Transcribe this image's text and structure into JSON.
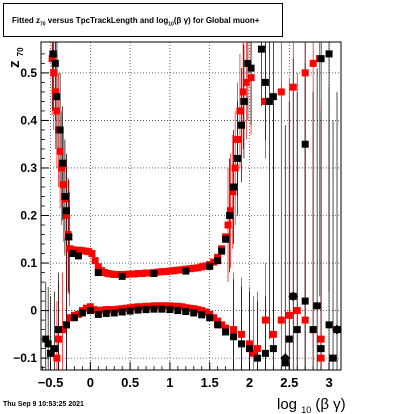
{
  "chart_data": {
    "type": "scatter",
    "title": "Fitted  z versus TpcTrackLength and log10(β γ) for Global muon+",
    "title_parts": {
      "prefix": "Fitted  z",
      "prefix_sub": "70",
      "middle": "  versus TpcTrackLength and log",
      "middle_sub": "10",
      "suffix": "(β  γ) for Global muon+"
    },
    "xlabel": "log10(β γ)",
    "xlabel_parts": {
      "main": "log",
      "sub": "10",
      "rest": "(β γ)"
    },
    "ylabel": "z70",
    "ylabel_parts": {
      "main": "z",
      "sub": "70"
    },
    "xlim": [
      -0.62,
      3.15
    ],
    "ylim": [
      -0.125,
      0.565
    ],
    "x_ticks": [
      -0.5,
      0,
      0.5,
      1,
      1.5,
      2,
      2.5,
      3
    ],
    "x_tick_labels": [
      "−0.5",
      "0",
      "0.5",
      "1",
      "1.5",
      "2",
      "2.5",
      "3"
    ],
    "y_ticks": [
      -0.1,
      0,
      0.1,
      0.2,
      0.3,
      0.4,
      0.5
    ],
    "y_tick_labels": [
      "−0.1",
      "0",
      "0.1",
      "0.2",
      "0.3",
      "0.4",
      "0.5"
    ],
    "grid": true,
    "series": [
      {
        "color": "#ff0000",
        "marker": "square",
        "points": [
          [
            -0.48,
            0.53
          ],
          [
            -0.46,
            0.5
          ],
          [
            -0.44,
            0.46
          ],
          [
            -0.42,
            0.42
          ],
          [
            -0.4,
            0.38
          ],
          [
            -0.38,
            0.335
          ],
          [
            -0.36,
            0.3
          ],
          [
            -0.34,
            0.265
          ],
          [
            -0.32,
            0.235
          ],
          [
            -0.3,
            0.2
          ],
          [
            -0.28,
            0.16
          ],
          [
            -0.26,
            0.13
          ],
          [
            -0.22,
            0.128
          ],
          [
            -0.18,
            0.127
          ],
          [
            -0.14,
            0.127
          ],
          [
            -0.1,
            0.126
          ],
          [
            -0.06,
            0.125
          ],
          [
            -0.02,
            0.124
          ],
          [
            0.02,
            0.12
          ],
          [
            0.06,
            0.105
          ],
          [
            0.1,
            0.092
          ],
          [
            0.14,
            0.084
          ],
          [
            0.18,
            0.08
          ],
          [
            0.22,
            0.078
          ],
          [
            0.26,
            0.077
          ],
          [
            0.3,
            0.076
          ],
          [
            0.35,
            0.076
          ],
          [
            0.4,
            0.076
          ],
          [
            0.45,
            0.076
          ],
          [
            0.5,
            0.077
          ],
          [
            0.55,
            0.077
          ],
          [
            0.6,
            0.078
          ],
          [
            0.65,
            0.078
          ],
          [
            0.7,
            0.079
          ],
          [
            0.75,
            0.079
          ],
          [
            0.8,
            0.08
          ],
          [
            0.85,
            0.081
          ],
          [
            0.9,
            0.082
          ],
          [
            0.95,
            0.082
          ],
          [
            1.0,
            0.083
          ],
          [
            1.05,
            0.084
          ],
          [
            1.1,
            0.085
          ],
          [
            1.15,
            0.086
          ],
          [
            1.2,
            0.087
          ],
          [
            1.25,
            0.088
          ],
          [
            1.3,
            0.089
          ],
          [
            1.35,
            0.09
          ],
          [
            1.4,
            0.092
          ],
          [
            1.45,
            0.094
          ],
          [
            1.5,
            0.097
          ],
          [
            1.55,
            0.102
          ],
          [
            1.6,
            0.112
          ],
          [
            1.65,
            0.13
          ],
          [
            1.7,
            0.155
          ],
          [
            1.73,
            0.18
          ],
          [
            1.76,
            0.21
          ],
          [
            1.79,
            0.25
          ],
          [
            1.82,
            0.3
          ],
          [
            1.85,
            0.36
          ],
          [
            1.88,
            0.42
          ],
          [
            1.92,
            0.46
          ],
          [
            1.96,
            0.48
          ],
          [
            2.02,
            0.49
          ],
          [
            2.2,
            0.44
          ],
          [
            2.4,
            0.46
          ],
          [
            2.55,
            0.47
          ],
          [
            2.7,
            0.5
          ],
          [
            2.8,
            0.52
          ],
          [
            2.88,
            0.53
          ],
          [
            -0.4,
            -0.06
          ],
          [
            -0.35,
            -0.04
          ],
          [
            -0.3,
            -0.03
          ],
          [
            -0.25,
            -0.015
          ],
          [
            -0.2,
            -0.01
          ],
          [
            -0.15,
            -0.008
          ],
          [
            -0.1,
            0.0
          ],
          [
            -0.05,
            0.005
          ],
          [
            0.0,
            0.008
          ],
          [
            0.05,
            0.002
          ],
          [
            0.1,
            0.0
          ],
          [
            0.15,
            0.001
          ],
          [
            0.2,
            0.002
          ],
          [
            0.25,
            0.002
          ],
          [
            0.3,
            0.002
          ],
          [
            0.35,
            0.003
          ],
          [
            0.4,
            0.004
          ],
          [
            0.45,
            0.005
          ],
          [
            0.5,
            0.006
          ],
          [
            0.55,
            0.007
          ],
          [
            0.6,
            0.008
          ],
          [
            0.65,
            0.008
          ],
          [
            0.7,
            0.009
          ],
          [
            0.75,
            0.009
          ],
          [
            0.8,
            0.01
          ],
          [
            0.85,
            0.01
          ],
          [
            0.9,
            0.01
          ],
          [
            0.95,
            0.01
          ],
          [
            1.0,
            0.01
          ],
          [
            1.05,
            0.009
          ],
          [
            1.1,
            0.009
          ],
          [
            1.15,
            0.008
          ],
          [
            1.2,
            0.006
          ],
          [
            1.25,
            0.005
          ],
          [
            1.3,
            0.004
          ],
          [
            1.35,
            0.002
          ],
          [
            1.4,
            0.0
          ],
          [
            1.45,
            -0.003
          ],
          [
            1.5,
            -0.008
          ],
          [
            1.55,
            -0.015
          ],
          [
            1.6,
            -0.022
          ],
          [
            1.65,
            -0.03
          ],
          [
            1.7,
            -0.037
          ],
          [
            1.8,
            -0.04
          ],
          [
            1.9,
            -0.05
          ],
          [
            2.0,
            -0.07
          ],
          [
            2.1,
            -0.08
          ],
          [
            2.2,
            -0.02
          ],
          [
            2.3,
            -0.05
          ],
          [
            2.4,
            -0.02
          ],
          [
            2.5,
            -0.01
          ],
          [
            2.6,
            0.0
          ],
          [
            2.7,
            -0.02
          ],
          [
            2.8,
            -0.04
          ],
          [
            2.9,
            -0.06
          ],
          [
            -0.42,
            -0.1
          ],
          [
            2.05,
            -0.09
          ],
          [
            2.9,
            -0.1
          ]
        ]
      },
      {
        "color": "#000000",
        "marker": "square",
        "points": [
          [
            -0.47,
            0.54
          ],
          [
            -0.44,
            0.52
          ],
          [
            -0.42,
            0.45
          ],
          [
            -0.38,
            0.38
          ],
          [
            -0.35,
            0.31
          ],
          [
            -0.32,
            0.24
          ],
          [
            -0.3,
            0.21
          ],
          [
            -0.27,
            0.155
          ],
          [
            -0.22,
            0.12
          ],
          [
            -0.15,
            0.115
          ],
          [
            0.1,
            0.08
          ],
          [
            0.4,
            0.072
          ],
          [
            0.8,
            0.078
          ],
          [
            1.2,
            0.083
          ],
          [
            1.5,
            0.093
          ],
          [
            1.6,
            0.105
          ],
          [
            1.65,
            0.125
          ],
          [
            1.7,
            0.15
          ],
          [
            1.75,
            0.2
          ],
          [
            1.8,
            0.26
          ],
          [
            1.85,
            0.32
          ],
          [
            1.9,
            0.39
          ],
          [
            1.93,
            0.44
          ],
          [
            1.98,
            0.52
          ],
          [
            2.02,
            0.51
          ],
          [
            2.2,
            0.48
          ],
          [
            2.25,
            0.44
          ],
          [
            2.3,
            0.45
          ],
          [
            2.7,
            0.35
          ],
          [
            2.9,
            0.53
          ],
          [
            3.0,
            0.54
          ],
          [
            2.15,
            0.55
          ],
          [
            -0.56,
            -0.06
          ],
          [
            -0.53,
            -0.07
          ],
          [
            -0.5,
            -0.09
          ],
          [
            -0.45,
            -0.08
          ],
          [
            -0.4,
            -0.04
          ],
          [
            -0.3,
            -0.03
          ],
          [
            -0.2,
            -0.015
          ],
          [
            -0.1,
            -0.005
          ],
          [
            0.0,
            0.0
          ],
          [
            0.1,
            -0.008
          ],
          [
            0.2,
            -0.006
          ],
          [
            0.3,
            -0.005
          ],
          [
            0.4,
            -0.003
          ],
          [
            0.5,
            -0.001
          ],
          [
            0.6,
            0.001
          ],
          [
            0.7,
            0.002
          ],
          [
            0.8,
            0.003
          ],
          [
            0.9,
            0.003
          ],
          [
            1.0,
            0.002
          ],
          [
            1.1,
            0.0
          ],
          [
            1.2,
            -0.002
          ],
          [
            1.3,
            -0.005
          ],
          [
            1.4,
            -0.009
          ],
          [
            1.5,
            -0.015
          ],
          [
            1.6,
            -0.03
          ],
          [
            1.7,
            -0.045
          ],
          [
            1.8,
            -0.055
          ],
          [
            1.9,
            -0.07
          ],
          [
            2.0,
            -0.08
          ],
          [
            2.1,
            -0.1
          ],
          [
            2.2,
            -0.09
          ],
          [
            2.3,
            -0.08
          ],
          [
            2.5,
            -0.06
          ],
          [
            2.6,
            -0.04
          ],
          [
            2.7,
            0.02
          ],
          [
            2.8,
            -0.04
          ],
          [
            2.9,
            -0.08
          ],
          [
            3.0,
            -0.03
          ],
          [
            3.05,
            -0.1
          ],
          [
            3.1,
            -0.04
          ],
          [
            2.55,
            0.03
          ],
          [
            2.45,
            -0.11
          ],
          [
            2.85,
            0.01
          ]
        ]
      }
    ]
  },
  "footer": {
    "timestamp": "Thu Sep  9 10:53:25 2021"
  }
}
